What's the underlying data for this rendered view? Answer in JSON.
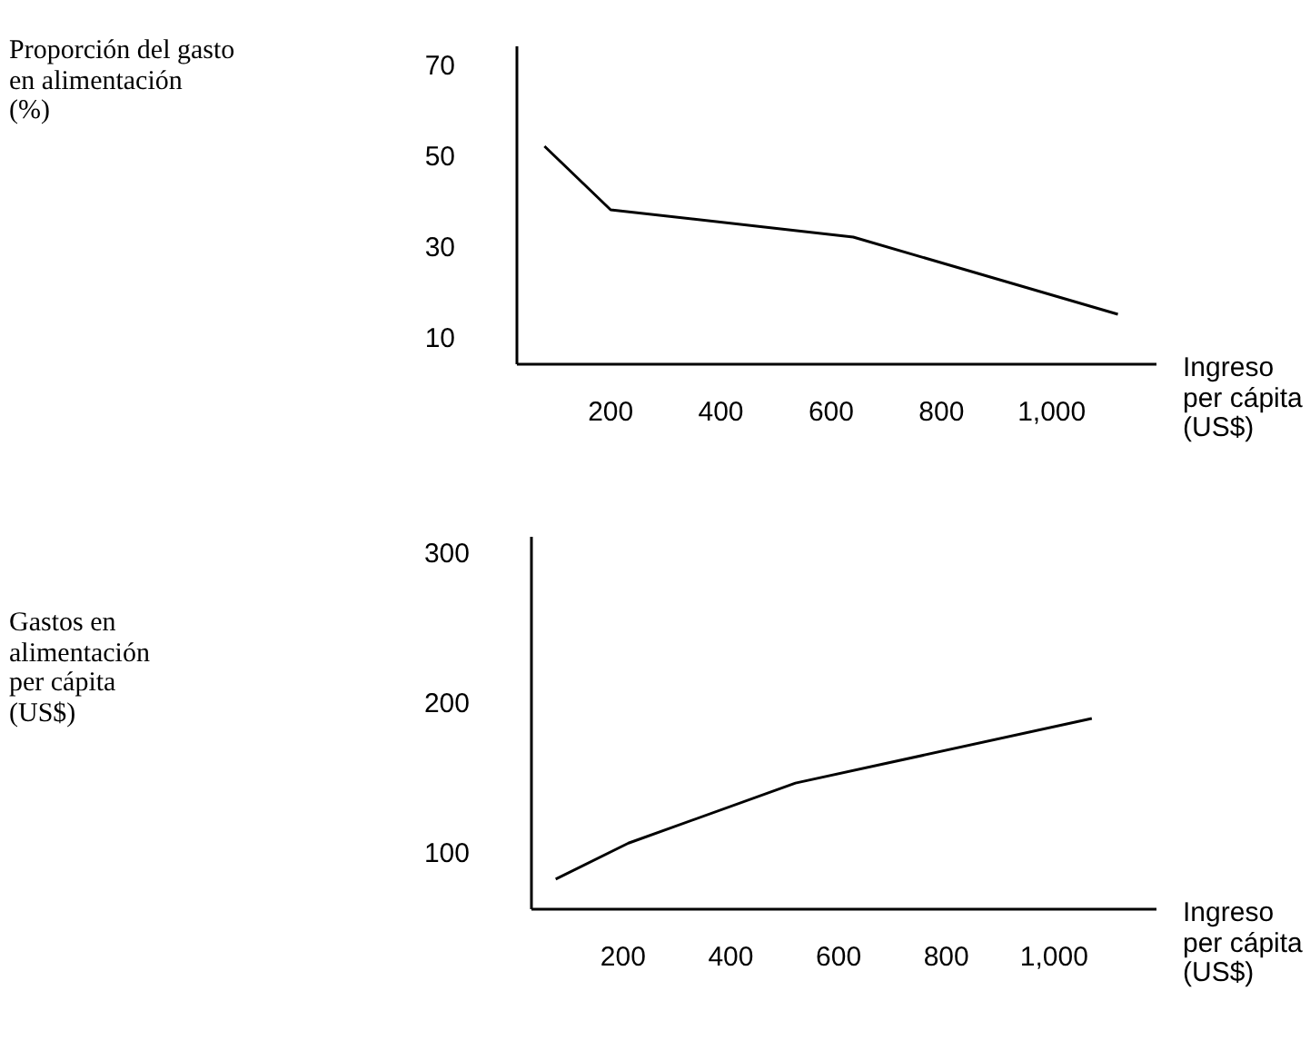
{
  "chart_data": [
    {
      "type": "line",
      "ylabel": "Proporción del gasto\nen alimentación\n(%)",
      "xlabel": "Ingreso\nper cápita\n(US$)",
      "x": [
        80,
        200,
        640,
        1120
      ],
      "values": [
        52,
        38,
        32,
        15
      ],
      "color": "#000000",
      "xlim": [
        30,
        1190
      ],
      "xticks": [
        200,
        400,
        600,
        800,
        {
          "value": 1000,
          "label": "1,000"
        }
      ],
      "ylim": [
        4,
        74
      ],
      "yticks": [
        10,
        30,
        50,
        70
      ],
      "grid": false
    },
    {
      "type": "line",
      "ylabel": "Gastos en\nalimentación\nper cápita\n(US$)",
      "xlabel": "Ingreso\nper cápita\n(US$)",
      "x": [
        75,
        210,
        520,
        1070
      ],
      "values": [
        82,
        106,
        146,
        189
      ],
      "color": "#000000",
      "xlim": [
        30,
        1190
      ],
      "xticks": [
        200,
        400,
        600,
        800,
        {
          "value": 1000,
          "label": "1,000"
        }
      ],
      "ylim": [
        62,
        310
      ],
      "yticks": [
        100,
        200,
        300
      ],
      "grid": false
    }
  ]
}
